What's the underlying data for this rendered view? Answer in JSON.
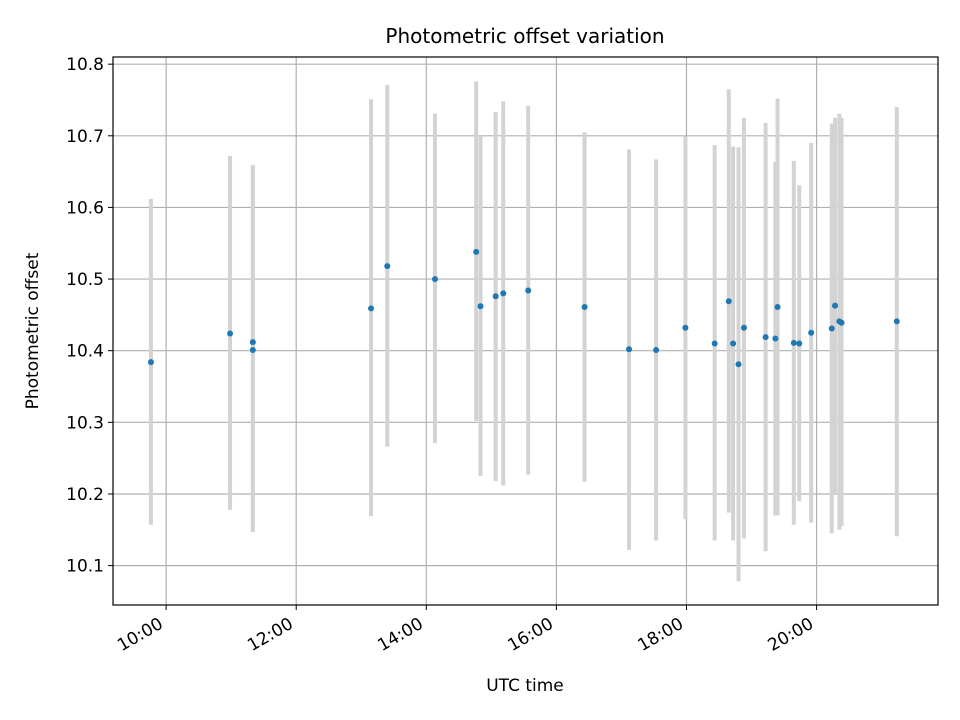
{
  "chart_data": {
    "type": "scatter",
    "title": "Photometric offset variation",
    "xlabel": "UTC time",
    "ylabel": "Photometric offset",
    "x_unit": "UTC time (HH:MM)",
    "xlim": [
      "09:11",
      "21:52"
    ],
    "ylim": [
      10.045,
      10.81
    ],
    "grid": true,
    "x_ticks": [
      "10:00",
      "12:00",
      "14:00",
      "16:00",
      "18:00",
      "20:00"
    ],
    "y_ticks": [
      "10.1",
      "10.2",
      "10.3",
      "10.4",
      "10.5",
      "10.6",
      "10.7",
      "10.8"
    ],
    "marker_color": "#1f77b4",
    "errorbar_color": "#d3d3d3",
    "points": [
      {
        "time": "09:46",
        "y": 10.384,
        "low": 10.157,
        "high": 10.612
      },
      {
        "time": "10:59",
        "y": 10.424,
        "low": 10.178,
        "high": 10.672
      },
      {
        "time": "11:20",
        "y": 10.412,
        "low": 10.147,
        "high": 10.659
      },
      {
        "time": "11:20",
        "y": 10.401,
        "low": 10.147,
        "high": 10.659
      },
      {
        "time": "13:09",
        "y": 10.459,
        "low": 10.169,
        "high": 10.751
      },
      {
        "time": "13:24",
        "y": 10.518,
        "low": 10.266,
        "high": 10.771
      },
      {
        "time": "14:08",
        "y": 10.5,
        "low": 10.271,
        "high": 10.731
      },
      {
        "time": "14:46",
        "y": 10.538,
        "low": 10.302,
        "high": 10.776
      },
      {
        "time": "14:50",
        "y": 10.462,
        "low": 10.225,
        "high": 10.7
      },
      {
        "time": "15:04",
        "y": 10.476,
        "low": 10.218,
        "high": 10.733
      },
      {
        "time": "15:11",
        "y": 10.48,
        "low": 10.212,
        "high": 10.748
      },
      {
        "time": "15:34",
        "y": 10.484,
        "low": 10.227,
        "high": 10.742
      },
      {
        "time": "16:26",
        "y": 10.461,
        "low": 10.217,
        "high": 10.705
      },
      {
        "time": "17:07",
        "y": 10.402,
        "low": 10.122,
        "high": 10.681
      },
      {
        "time": "17:32",
        "y": 10.401,
        "low": 10.135,
        "high": 10.667
      },
      {
        "time": "17:59",
        "y": 10.432,
        "low": 10.165,
        "high": 10.699
      },
      {
        "time": "18:26",
        "y": 10.41,
        "low": 10.135,
        "high": 10.687
      },
      {
        "time": "18:39",
        "y": 10.469,
        "low": 10.174,
        "high": 10.765
      },
      {
        "time": "18:43",
        "y": 10.41,
        "low": 10.135,
        "high": 10.685
      },
      {
        "time": "18:48",
        "y": 10.381,
        "low": 10.078,
        "high": 10.684
      },
      {
        "time": "18:53",
        "y": 10.432,
        "low": 10.138,
        "high": 10.725
      },
      {
        "time": "19:13",
        "y": 10.419,
        "low": 10.12,
        "high": 10.718
      },
      {
        "time": "19:22",
        "y": 10.417,
        "low": 10.17,
        "high": 10.664
      },
      {
        "time": "19:24",
        "y": 10.461,
        "low": 10.17,
        "high": 10.752
      },
      {
        "time": "19:39",
        "y": 10.411,
        "low": 10.157,
        "high": 10.665
      },
      {
        "time": "19:44",
        "y": 10.41,
        "low": 10.19,
        "high": 10.631
      },
      {
        "time": "19:55",
        "y": 10.425,
        "low": 10.16,
        "high": 10.69
      },
      {
        "time": "20:14",
        "y": 10.431,
        "low": 10.145,
        "high": 10.717
      },
      {
        "time": "20:17",
        "y": 10.463,
        "low": 10.2,
        "high": 10.725
      },
      {
        "time": "20:21",
        "y": 10.441,
        "low": 10.15,
        "high": 10.731
      },
      {
        "time": "20:23",
        "y": 10.439,
        "low": 10.155,
        "high": 10.725
      },
      {
        "time": "21:14",
        "y": 10.441,
        "low": 10.141,
        "high": 10.74
      }
    ]
  }
}
